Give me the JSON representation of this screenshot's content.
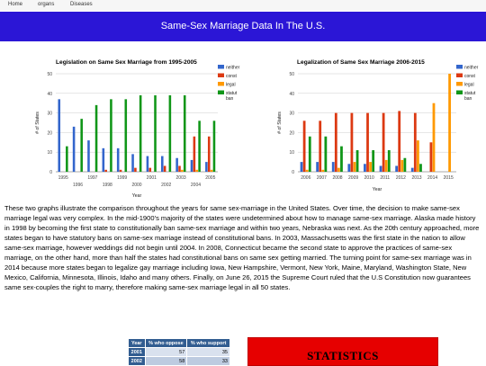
{
  "nav": {
    "items": [
      "Home",
      "organs",
      "Diseases"
    ]
  },
  "banner": {
    "title": "Same-Sex Marriage Data In The U.S."
  },
  "charts": {
    "left": {
      "title": "Legislation on Same Sex Marriage from 1995-2005",
      "xlabel": "Year",
      "ylabel": "# of States",
      "legend": [
        "neither",
        "const",
        "legal",
        "statut ban"
      ]
    },
    "right": {
      "title": "Legalization of Same Sex Marriage 2006-2015",
      "xlabel": "Year",
      "ylabel": "# of States",
      "legend": [
        "neither",
        "const",
        "legal",
        "statut ban"
      ]
    }
  },
  "chart_data": [
    {
      "type": "bar",
      "title": "Legislation on Same Sex Marriage from 1995-2005",
      "xlabel": "Year",
      "ylabel": "# of States",
      "ylim": [
        0,
        50
      ],
      "yticks": [
        0,
        10,
        20,
        30,
        40,
        50
      ],
      "grid": true,
      "legend_position": "right",
      "categories": [
        "1995",
        "1996",
        "1997",
        "1998",
        "1999",
        "2000",
        "2001",
        "2002",
        "2003",
        "2004",
        "2005"
      ],
      "series": [
        {
          "name": "neither",
          "color": "#3366cc",
          "values": [
            37,
            23,
            16,
            12,
            12,
            9,
            8,
            8,
            7,
            6,
            5
          ]
        },
        {
          "name": "const",
          "color": "#dc3912",
          "values": [
            0,
            0,
            0,
            1,
            1,
            2,
            2,
            3,
            3,
            18,
            18
          ]
        },
        {
          "name": "legal",
          "color": "#ff9900",
          "values": [
            0,
            0,
            0,
            0,
            0,
            0,
            0,
            0,
            1,
            1,
            1
          ]
        },
        {
          "name": "statut ban",
          "color": "#109618",
          "values": [
            13,
            27,
            34,
            37,
            37,
            39,
            39,
            39,
            39,
            26,
            26
          ]
        }
      ]
    },
    {
      "type": "bar",
      "title": "Legalization of Same Sex Marriage 2006-2015",
      "xlabel": "Year",
      "ylabel": "# of States",
      "ylim": [
        0,
        50
      ],
      "yticks": [
        0,
        10,
        20,
        30,
        40,
        50
      ],
      "grid": true,
      "legend_position": "right",
      "categories": [
        "2006",
        "2007",
        "2008",
        "2009",
        "2010",
        "2011",
        "2012",
        "2013",
        "2014",
        "2015"
      ],
      "series": [
        {
          "name": "neither",
          "color": "#3366cc",
          "values": [
            5,
            5,
            5,
            4,
            4,
            3,
            3,
            2,
            0,
            0
          ]
        },
        {
          "name": "const",
          "color": "#dc3912",
          "values": [
            26,
            26,
            30,
            30,
            30,
            30,
            31,
            30,
            15,
            0
          ]
        },
        {
          "name": "legal",
          "color": "#ff9900",
          "values": [
            1,
            1,
            2,
            5,
            5,
            6,
            6,
            16,
            35,
            50
          ]
        },
        {
          "name": "statut ban",
          "color": "#109618",
          "values": [
            18,
            18,
            13,
            11,
            11,
            11,
            7,
            4,
            0,
            0
          ]
        }
      ]
    }
  ],
  "paragraph": "These two graphs illustrate the comparison throughout the years for same sex-marriage in the United States. Over time, the decision to make same-sex marriage legal was very complex. In the mid-1900’s majority of the states were undetermined about how to manage same-sex marriage. Alaska made history in 1998 by becoming the first state to constitutionally ban same-sex marriage and within two years, Nebraska was next. As the 20th century approached, more states began to have statutory bans on same-sex marriage instead of constitutional bans. In 2003, Massachusetts was the first state in the nation to allow same-sex marriage, however weddings did not begin until 2004. In 2008, Connecticut became the second state to approve the practices of same-sex marriage, on the other hand, more than half the states had constitutional bans on same sex getting married. The turning point for same-sex marriage was in 2014 because more states began to legalize gay marriage including Iowa, New Hampshire, Vermont, New York, Maine, Maryland, Washington State, New Mexico, California, Minnesota, Illinois, Idaho and many others. Finally, on June 26, 2015 the Supreme Court ruled that the U.S Constitution now guarantees same sex-couples the right to marry, therefore making same-sex marriage legal in all 50 states.",
  "opinion_table": {
    "headers": [
      "Year",
      "% who oppose",
      "% who support"
    ],
    "rows": [
      [
        "2001",
        "57",
        "35"
      ],
      [
        "2002",
        "58",
        "33"
      ]
    ]
  },
  "stats_banner": {
    "label": "STATISTICS",
    "color": "#e60000"
  }
}
